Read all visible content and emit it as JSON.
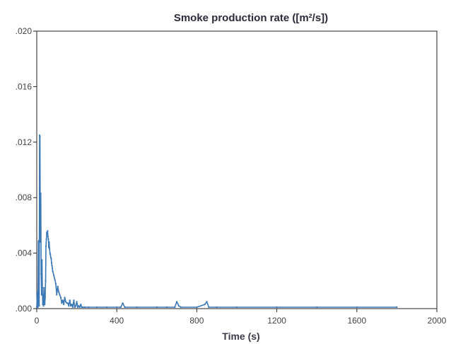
{
  "chart_data": {
    "type": "line",
    "title": "Smoke production rate ([m²/s])",
    "xlabel": "Time (s)",
    "ylabel": "",
    "xlim": [
      0,
      2000
    ],
    "ylim": [
      0,
      0.02
    ],
    "xticks": [
      "0",
      "400",
      "800",
      "1200",
      "1600",
      "2000"
    ],
    "yticks": [
      ".000",
      ".004",
      ".008",
      ".012",
      ".016",
      ".020"
    ],
    "grid": false,
    "series_color": "#3b78b8",
    "series": [
      {
        "x": [
          0,
          3,
          6,
          8,
          10,
          12,
          14,
          16,
          18,
          20,
          22,
          24,
          26,
          28,
          30,
          32,
          34,
          36,
          38,
          40,
          42,
          44,
          46,
          48,
          50,
          52,
          54,
          56,
          58,
          60,
          62,
          64,
          66,
          68,
          70,
          72,
          74,
          76,
          78,
          80,
          85,
          90,
          95,
          100,
          105,
          110,
          115,
          120,
          125,
          130,
          135,
          140,
          145,
          150,
          155,
          160,
          165,
          170,
          175,
          180,
          185,
          190,
          195,
          200,
          205,
          210,
          215,
          220,
          225,
          230,
          240,
          260,
          300,
          350,
          400,
          420,
          430,
          440,
          500,
          600,
          650,
          690,
          700,
          710,
          720,
          800,
          840,
          850,
          860,
          900,
          1000,
          1200,
          1400,
          1600,
          1800
        ],
        "y": [
          0.0001,
          0.0012,
          0.0001,
          0.0048,
          0.0049,
          0.0002,
          0.0125,
          0.0124,
          0.0048,
          0.0083,
          0.0025,
          0.001,
          0.0035,
          0.0015,
          0.0003,
          0.001,
          0.0002,
          0.0015,
          0.0006,
          0.0003,
          0.0008,
          0.002,
          0.0045,
          0.005,
          0.0055,
          0.0054,
          0.0056,
          0.0052,
          0.005,
          0.0044,
          0.0048,
          0.0043,
          0.004,
          0.0039,
          0.0037,
          0.0036,
          0.0033,
          0.0031,
          0.0029,
          0.0027,
          0.0024,
          0.0021,
          0.0018,
          0.001,
          0.0016,
          0.0012,
          0.001,
          0.0008,
          0.0004,
          0.0006,
          0.0003,
          0.0008,
          0.0005,
          0.0004,
          0.0004,
          0.0002,
          0.0006,
          0.0002,
          0.0003,
          0.0001,
          0.0006,
          0.0001,
          0.0002,
          0.0005,
          0.0001,
          0.0002,
          0.0001,
          0.0003,
          0.0001,
          0.0001,
          0.0001,
          0.0001,
          0.0001,
          0.0001,
          0.0001,
          0.0001,
          0.0004,
          0.0001,
          0.0001,
          0.0001,
          0.0001,
          0.0001,
          0.0005,
          0.0002,
          0.0001,
          0.0001,
          0.0003,
          0.0005,
          0.0001,
          0.0001,
          0.0001,
          0.0001,
          0.0001,
          0.0001,
          0.0001
        ]
      }
    ]
  }
}
